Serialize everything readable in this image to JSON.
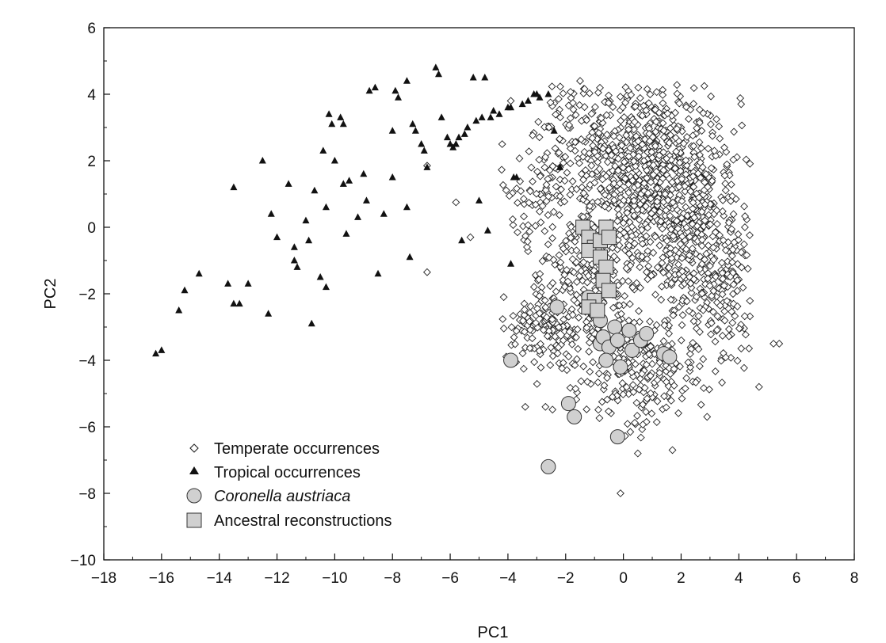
{
  "chart_data": {
    "type": "scatter",
    "xlabel": "PC1",
    "ylabel": "PC2",
    "xlim": [
      -18,
      8
    ],
    "ylim": [
      -10,
      6
    ],
    "x_ticks": [
      -18,
      -16,
      -14,
      -12,
      -10,
      -8,
      -6,
      -4,
      -2,
      0,
      2,
      4,
      6,
      8
    ],
    "y_ticks": [
      -10,
      -8,
      -6,
      -4,
      -2,
      0,
      2,
      4,
      6
    ],
    "tick_labels_x": [
      "−18",
      "−16",
      "−14",
      "−12",
      "−10",
      "−8",
      "−6",
      "−4",
      "−2",
      "0",
      "2",
      "4",
      "6",
      "8"
    ],
    "tick_labels_y": [
      "−10",
      "−8",
      "−6",
      "−4",
      "−2",
      "0",
      "2",
      "4",
      "6"
    ],
    "grid": false,
    "legend_position": "bottom-left",
    "series": [
      {
        "name": "Temperate occurrences",
        "marker": "open-diamond",
        "color": "#222222",
        "generated_count": 1900,
        "points": [
          [
            5.4,
            -3.5
          ],
          [
            5.2,
            -3.5
          ],
          [
            4.7,
            -4.8
          ],
          [
            -1.5,
            4.4
          ],
          [
            -0.8,
            3.3
          ],
          [
            -2.2,
            1.8
          ],
          [
            -3.9,
            3.8
          ],
          [
            -5.3,
            -0.3
          ],
          [
            -6.8,
            -1.35
          ],
          [
            -6.8,
            1.85
          ],
          [
            -5.8,
            0.75
          ],
          [
            -4.2,
            2.5
          ],
          [
            -3.4,
            -5.4
          ],
          [
            -2.7,
            -5.4
          ],
          [
            0.5,
            -6.8
          ],
          [
            -0.1,
            -8.0
          ],
          [
            1.7,
            -6.7
          ],
          [
            2.9,
            -5.7
          ],
          [
            1.1,
            3.6
          ],
          [
            2.0,
            3.0
          ]
        ]
      },
      {
        "name": "Tropical occurrences",
        "marker": "filled-triangle",
        "color": "#111111",
        "points": [
          [
            -16.2,
            -3.8
          ],
          [
            -16.0,
            -3.7
          ],
          [
            -15.4,
            -2.5
          ],
          [
            -15.2,
            -1.9
          ],
          [
            -14.7,
            -1.4
          ],
          [
            -13.7,
            -1.7
          ],
          [
            -13.5,
            -2.3
          ],
          [
            -13.3,
            -2.3
          ],
          [
            -13.5,
            1.2
          ],
          [
            -13.0,
            -1.7
          ],
          [
            -12.5,
            2.0
          ],
          [
            -12.2,
            0.4
          ],
          [
            -12.3,
            -2.6
          ],
          [
            -12.0,
            -0.3
          ],
          [
            -11.6,
            1.3
          ],
          [
            -11.4,
            -0.6
          ],
          [
            -11.4,
            -1.0
          ],
          [
            -11.3,
            -1.2
          ],
          [
            -11.0,
            0.2
          ],
          [
            -10.9,
            -0.4
          ],
          [
            -10.8,
            -2.9
          ],
          [
            -10.7,
            1.1
          ],
          [
            -10.5,
            -1.5
          ],
          [
            -10.4,
            2.3
          ],
          [
            -10.3,
            0.6
          ],
          [
            -10.3,
            -1.8
          ],
          [
            -10.2,
            3.4
          ],
          [
            -10.1,
            3.1
          ],
          [
            -10.0,
            2.0
          ],
          [
            -9.8,
            3.3
          ],
          [
            -9.7,
            3.1
          ],
          [
            -9.7,
            1.3
          ],
          [
            -9.6,
            -0.2
          ],
          [
            -9.5,
            1.4
          ],
          [
            -9.2,
            0.3
          ],
          [
            -9.0,
            1.6
          ],
          [
            -8.9,
            0.8
          ],
          [
            -8.8,
            4.1
          ],
          [
            -8.6,
            4.2
          ],
          [
            -8.5,
            -1.4
          ],
          [
            -8.3,
            0.4
          ],
          [
            -8.0,
            2.9
          ],
          [
            -8.0,
            1.5
          ],
          [
            -7.9,
            4.1
          ],
          [
            -7.8,
            3.9
          ],
          [
            -7.5,
            4.4
          ],
          [
            -7.5,
            0.6
          ],
          [
            -7.4,
            -0.9
          ],
          [
            -7.3,
            3.1
          ],
          [
            -7.2,
            2.9
          ],
          [
            -7.0,
            2.5
          ],
          [
            -6.9,
            2.3
          ],
          [
            -6.8,
            1.8
          ],
          [
            -6.5,
            4.8
          ],
          [
            -6.4,
            4.6
          ],
          [
            -6.3,
            3.3
          ],
          [
            -6.1,
            2.7
          ],
          [
            -6.0,
            2.5
          ],
          [
            -5.9,
            2.4
          ],
          [
            -5.8,
            2.5
          ],
          [
            -5.7,
            2.7
          ],
          [
            -5.5,
            2.8
          ],
          [
            -5.4,
            3.0
          ],
          [
            -5.2,
            4.5
          ],
          [
            -5.1,
            3.2
          ],
          [
            -4.9,
            3.3
          ],
          [
            -4.8,
            4.5
          ],
          [
            -4.6,
            3.3
          ],
          [
            -4.5,
            3.5
          ],
          [
            -4.3,
            3.4
          ],
          [
            -4.0,
            3.6
          ],
          [
            -3.9,
            3.6
          ],
          [
            -3.8,
            1.5
          ],
          [
            -3.7,
            1.5
          ],
          [
            -3.5,
            3.7
          ],
          [
            -3.3,
            3.8
          ],
          [
            -3.1,
            4.0
          ],
          [
            -3.0,
            4.0
          ],
          [
            -2.9,
            3.9
          ],
          [
            -2.6,
            4.0
          ],
          [
            -2.4,
            2.9
          ],
          [
            -2.2,
            1.8
          ],
          [
            -5.0,
            0.8
          ],
          [
            -5.6,
            -0.4
          ],
          [
            -4.7,
            -0.1
          ],
          [
            -3.9,
            -1.1
          ]
        ]
      },
      {
        "name": "Coronella austriaca",
        "marker": "gray-circle",
        "color": "#d0d0d0",
        "points": [
          [
            -3.9,
            -4.0
          ],
          [
            -2.3,
            -2.4
          ],
          [
            -2.6,
            -7.2
          ],
          [
            -1.9,
            -5.3
          ],
          [
            -1.7,
            -5.7
          ],
          [
            -1.2,
            -2.1
          ],
          [
            -1.0,
            -2.5
          ],
          [
            -0.8,
            -2.8
          ],
          [
            -0.8,
            -3.5
          ],
          [
            -0.7,
            -3.3
          ],
          [
            -0.5,
            -3.6
          ],
          [
            -0.6,
            -4.0
          ],
          [
            -0.3,
            -3.0
          ],
          [
            -0.2,
            -3.4
          ],
          [
            0.2,
            -3.1
          ],
          [
            0.3,
            -3.7
          ],
          [
            0.6,
            -3.4
          ],
          [
            0.8,
            -3.2
          ],
          [
            -0.1,
            -4.2
          ],
          [
            1.4,
            -3.8
          ],
          [
            1.6,
            -3.9
          ],
          [
            -0.2,
            -6.3
          ]
        ]
      },
      {
        "name": "Ancestral reconstructions",
        "marker": "gray-square",
        "color": "#d0d0d0",
        "points": [
          [
            -1.4,
            0.0
          ],
          [
            -1.2,
            -0.3
          ],
          [
            -1.0,
            -0.6
          ],
          [
            -1.2,
            -0.7
          ],
          [
            -0.8,
            -0.4
          ],
          [
            -0.6,
            0.0
          ],
          [
            -0.5,
            -0.3
          ],
          [
            -0.8,
            -0.9
          ],
          [
            -0.6,
            -1.2
          ],
          [
            -0.7,
            -1.6
          ],
          [
            -0.5,
            -1.9
          ],
          [
            -1.0,
            -2.2
          ],
          [
            -1.2,
            -2.4
          ],
          [
            -0.9,
            -2.5
          ]
        ]
      }
    ]
  }
}
